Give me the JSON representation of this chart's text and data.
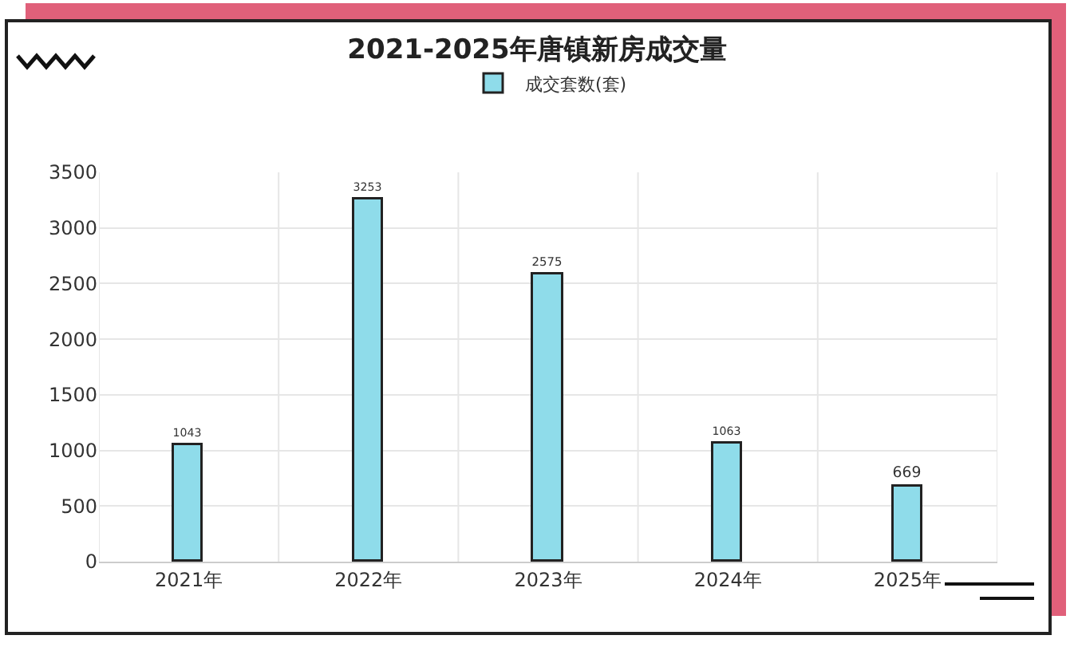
{
  "chart_data": {
    "type": "bar",
    "title": "2021-2025年唐镇新房成交量",
    "categories": [
      "2021年",
      "2022年",
      "2023年",
      "2024年",
      "2025年"
    ],
    "series": [
      {
        "name": "成交套数(套)",
        "color": "#8fdcea",
        "values": [
          1043,
          3253,
          2575,
          1063,
          669
        ]
      }
    ],
    "ylim": [
      0,
      3500
    ],
    "yticks": [
      0,
      500,
      1000,
      1500,
      2000,
      2500,
      3000,
      3500
    ],
    "grid": true,
    "legend": "top",
    "data_labels": true
  }
}
